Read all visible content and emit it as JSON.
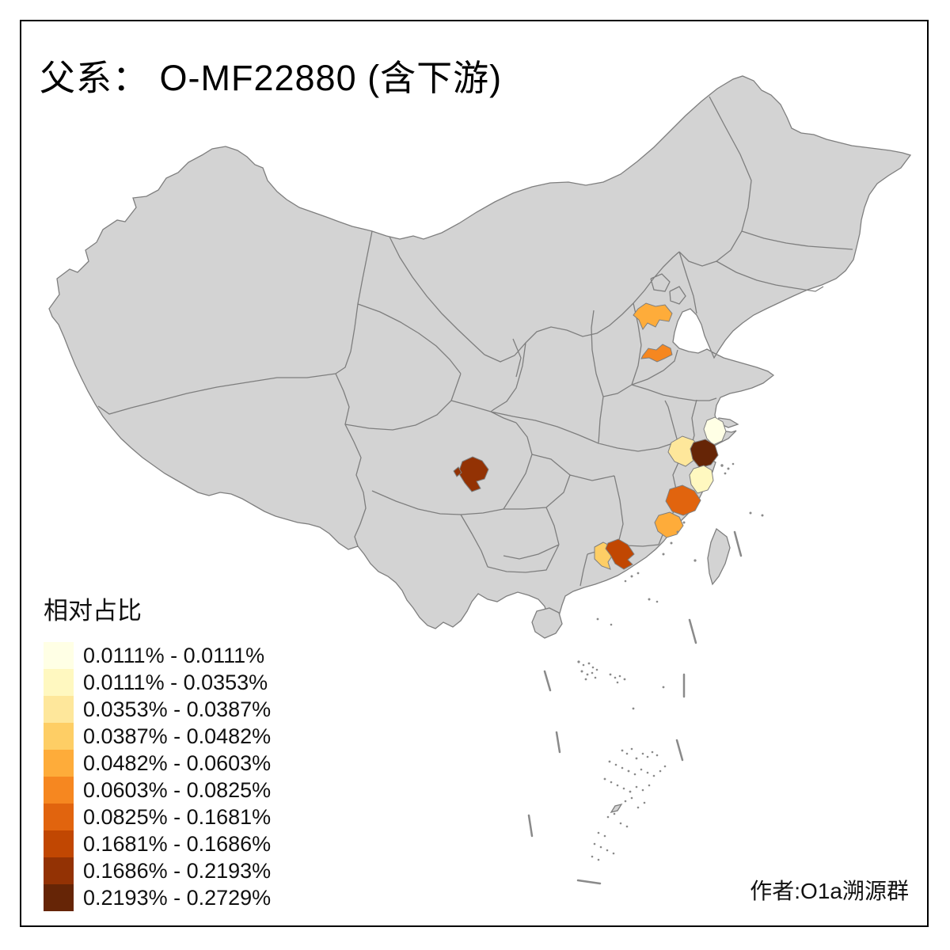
{
  "page": {
    "background": "#FFFFFF",
    "frame_color": "#000000"
  },
  "title": "父系： O-MF22880 (含下游)",
  "author_credit": "作者:O1a溯源群",
  "legend": {
    "title": "相对占比",
    "classes": [
      {
        "label": "0.0111% - 0.0111%",
        "color": "#FFFFE5"
      },
      {
        "label": "0.0111% - 0.0353%",
        "color": "#FFF8C0"
      },
      {
        "label": "0.0353% - 0.0387%",
        "color": "#FEE79B"
      },
      {
        "label": "0.0387% - 0.0482%",
        "color": "#FECE65"
      },
      {
        "label": "0.0482% - 0.0603%",
        "color": "#FEAC3A"
      },
      {
        "label": "0.0603% - 0.0825%",
        "color": "#F68720"
      },
      {
        "label": "0.0825% - 0.1681%",
        "color": "#E1640E"
      },
      {
        "label": "0.1681% - 0.1686%",
        "color": "#C14702"
      },
      {
        "label": "0.1686% - 0.2193%",
        "color": "#933204"
      },
      {
        "label": "0.2193% - 0.2729%",
        "color": "#662506"
      }
    ]
  },
  "map": {
    "land_fill": "#D3D3D3",
    "border_color": "#7E7E7E",
    "sea_fill": "#FFFFFF",
    "highlighted_regions": [
      {
        "id": "north-china-upper",
        "class_index": 4
      },
      {
        "id": "north-china-lower",
        "class_index": 5
      },
      {
        "id": "yangtze-delta-north",
        "class_index": 0
      },
      {
        "id": "yangtze-delta-west",
        "class_index": 2
      },
      {
        "id": "yangtze-delta-center",
        "class_index": 9
      },
      {
        "id": "east-coast-mid",
        "class_index": 1
      },
      {
        "id": "east-coast-south",
        "class_index": 6
      },
      {
        "id": "southeast-coast",
        "class_index": 4
      },
      {
        "id": "pearl-delta-west",
        "class_index": 3
      },
      {
        "id": "pearl-delta-east",
        "class_index": 7
      },
      {
        "id": "southwest-basin",
        "class_index": 8
      }
    ]
  }
}
